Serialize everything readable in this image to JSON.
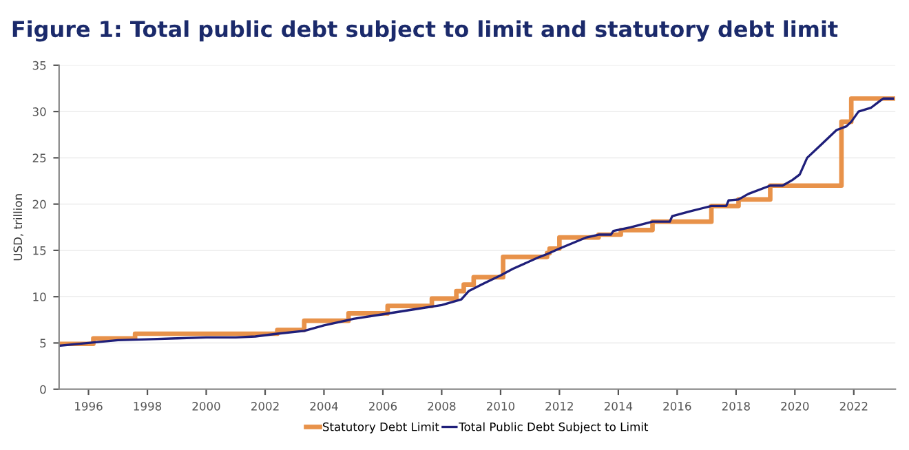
{
  "chart_data": {
    "type": "line",
    "title": "Figure 1: Total public debt subject to limit and statutory debt limit",
    "ylabel": "USD, trillion",
    "xlim": [
      "1995-01",
      "2023-06"
    ],
    "xticks": [
      "1996",
      "1998",
      "2000",
      "2002",
      "2004",
      "2006",
      "2008",
      "2010",
      "2012",
      "2014",
      "2016",
      "2018",
      "2020",
      "2022"
    ],
    "ylim": [
      0,
      35
    ],
    "yticks": [
      0,
      5,
      10,
      15,
      20,
      25,
      30,
      35
    ],
    "grid": "y",
    "legend": "bottom",
    "series": [
      {
        "name": "Statutory Debt Limit",
        "type": "step",
        "color": "#e8924a",
        "x": [
          "1995-01",
          "1996-03",
          "1997-08",
          "2002-06",
          "2003-05",
          "2004-11",
          "2006-03",
          "2007-09",
          "2008-07",
          "2008-10",
          "2009-02",
          "2010-02",
          "2011-08",
          "2011-09",
          "2012-01",
          "2013-05",
          "2014-02",
          "2015-03",
          "2015-11",
          "2017-03",
          "2017-12",
          "2018-02",
          "2019-03",
          "2021-08",
          "2021-12",
          "2023-05"
        ],
        "values": [
          4.9,
          5.5,
          6.0,
          6.4,
          7.4,
          8.2,
          9.0,
          9.8,
          10.6,
          11.3,
          12.1,
          14.3,
          14.7,
          15.2,
          16.4,
          16.7,
          17.2,
          18.1,
          18.1,
          19.8,
          19.8,
          20.5,
          22.0,
          28.9,
          31.4,
          31.4
        ]
      },
      {
        "name": "Total Public Debt Subject to Limit",
        "color": "#1f1f7a",
        "x": [
          "1995-01",
          "1996-01",
          "1997-01",
          "1998-01",
          "1999-01",
          "2000-01",
          "2001-01",
          "2001-09",
          "2002-06",
          "2003-05",
          "2004-01",
          "2005-01",
          "2006-01",
          "2007-01",
          "2008-01",
          "2008-09",
          "2008-12",
          "2009-06",
          "2010-01",
          "2010-06",
          "2011-05",
          "2011-08",
          "2012-01",
          "2012-12",
          "2013-05",
          "2013-10",
          "2013-11",
          "2014-06",
          "2015-03",
          "2015-10",
          "2015-11",
          "2016-06",
          "2017-03",
          "2017-09",
          "2017-10",
          "2018-02",
          "2018-06",
          "2019-03",
          "2019-08",
          "2019-12",
          "2020-03",
          "2020-06",
          "2020-12",
          "2021-06",
          "2021-10",
          "2021-12",
          "2022-03",
          "2022-08",
          "2022-12",
          "2023-01",
          "2023-05"
        ],
        "values": [
          4.7,
          5.0,
          5.3,
          5.4,
          5.5,
          5.6,
          5.6,
          5.7,
          6.0,
          6.3,
          6.9,
          7.6,
          8.1,
          8.6,
          9.1,
          9.7,
          10.6,
          11.4,
          12.3,
          13.0,
          14.3,
          14.6,
          15.2,
          16.4,
          16.7,
          16.7,
          17.1,
          17.5,
          18.1,
          18.1,
          18.7,
          19.2,
          19.8,
          19.8,
          20.4,
          20.5,
          21.1,
          22.0,
          22.0,
          22.6,
          23.2,
          25.0,
          26.5,
          28.0,
          28.4,
          28.9,
          30.0,
          30.4,
          31.2,
          31.4,
          31.4
        ]
      }
    ]
  }
}
